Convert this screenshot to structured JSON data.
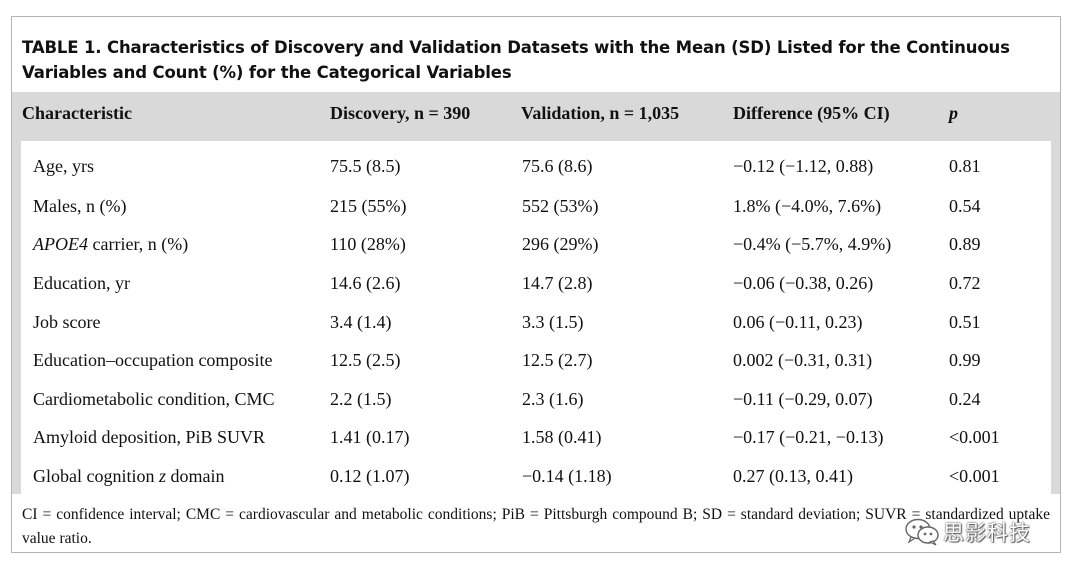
{
  "table": {
    "title": "TABLE 1. Characteristics of Discovery and Validation Datasets with the Mean (SD) Listed for the Continuous Variables and Count (%) for the Categorical Variables",
    "headers": [
      "Characteristic",
      "Discovery, n = 390",
      "Validation, n = 1,035",
      "Difference (95% CI)",
      "p"
    ],
    "rows": [
      {
        "characteristic": "Age, yrs",
        "discovery": "75.5 (8.5)",
        "validation": "75.6 (8.6)",
        "difference": "−0.12 (−1.12, 0.88)",
        "p": "0.81"
      },
      {
        "characteristic": "Males, n (%)",
        "discovery": "215 (55%)",
        "validation": "552 (53%)",
        "difference": "1.8% (−4.0%, 7.6%)",
        "p": "0.54"
      },
      {
        "characteristic_italic": "APOE4",
        "characteristic_rest": " carrier, n (%)",
        "discovery": "110 (28%)",
        "validation": "296 (29%)",
        "difference": "−0.4% (−5.7%, 4.9%)",
        "p": "0.89"
      },
      {
        "characteristic": "Education, yr",
        "discovery": "14.6 (2.6)",
        "validation": "14.7 (2.8)",
        "difference": "−0.06 (−0.38, 0.26)",
        "p": "0.72"
      },
      {
        "characteristic": "Job score",
        "discovery": "3.4 (1.4)",
        "validation": "3.3 (1.5)",
        "difference": "0.06 (−0.11, 0.23)",
        "p": "0.51"
      },
      {
        "characteristic": "Education–occupation composite",
        "discovery": "12.5 (2.5)",
        "validation": "12.5 (2.7)",
        "difference": "0.002 (−0.31, 0.31)",
        "p": "0.99"
      },
      {
        "characteristic": "Cardiometabolic condition, CMC",
        "discovery": "2.2 (1.5)",
        "validation": "2.3 (1.6)",
        "difference": "−0.11 (−0.29, 0.07)",
        "p": "0.24"
      },
      {
        "characteristic": "Amyloid deposition, PiB SUVR",
        "discovery": "1.41 (0.17)",
        "validation": "1.58 (0.41)",
        "difference": "−0.17 (−0.21, −0.13)",
        "p": "<0.001"
      },
      {
        "characteristic_pre": "Global cognition ",
        "characteristic_italic": "z",
        "characteristic_rest": " domain",
        "discovery": "0.12 (1.07)",
        "validation": "−0.14 (1.18)",
        "difference": "0.27 (0.13, 0.41)",
        "p": "<0.001"
      }
    ],
    "footnote": "CI = confidence interval; CMC = cardiovascular and metabolic conditions; PiB = Pittsburgh compound B; SD = standard deviation; SUVR = standardized uptake value ratio."
  },
  "watermark": {
    "icon": "wechat-icon",
    "text": "思影科技"
  }
}
